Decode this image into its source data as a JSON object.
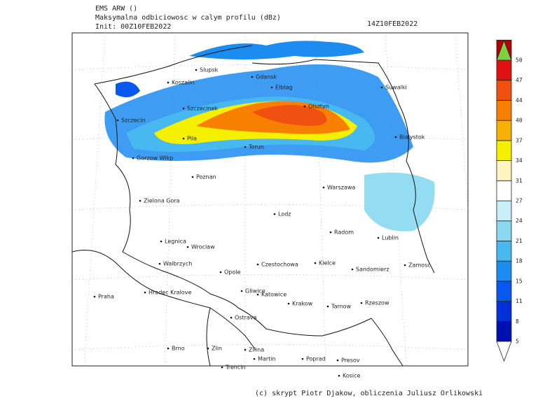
{
  "header": {
    "model": "EMS ARW ()",
    "field": "Maksymalna odbiciowosc w calym profilu (dBz)",
    "init": "Init: 00Z10FEB2022",
    "valid": "14Z10FEB2022"
  },
  "map": {
    "cities": [
      "Slupsk",
      "Gdansk",
      "Koszalin",
      "Elblag",
      "Suwalki",
      "Szczecinek",
      "Olsztyn",
      "Szczecin",
      "Bialystok",
      "Pila",
      "Torun",
      "Gorzow Wlkp",
      "Poznan",
      "Warszawa",
      "Zielona Gora",
      "Lodz",
      "Radom",
      "Lublin",
      "Legnica",
      "Wroclaw",
      "Walbrzych",
      "Opole",
      "Czestochowa",
      "Kielce",
      "Sandomierz",
      "Zamosc",
      "Praha",
      "Hradec Kralove",
      "Gliwice",
      "Katowice",
      "Krakow",
      "Tarnow",
      "Rzeszow",
      "Ostrava",
      "Brno",
      "Zlin",
      "Zilina",
      "Martin",
      "Poprad",
      "Presov",
      "Trencin",
      "Kosice"
    ]
  },
  "legend": {
    "levels": [
      5,
      8,
      11,
      15,
      18,
      21,
      24,
      27,
      31,
      34,
      37,
      40,
      44,
      47,
      50
    ],
    "colors": [
      "#0010b0",
      "#0030d8",
      "#0858f0",
      "#1c8cf0",
      "#48b8f0",
      "#88d8f0",
      "#c8eef8",
      "#ffffff",
      "#fff4c0",
      "#f4f000",
      "#f8b000",
      "#f88000",
      "#f05010",
      "#e01010",
      "#b00000"
    ],
    "under_color": "#ffffff",
    "over_color": "#80d040"
  },
  "footer": {
    "credit": "(c) skrypt Piotr Djakow, obliczenia Juliusz Orlikowski"
  }
}
